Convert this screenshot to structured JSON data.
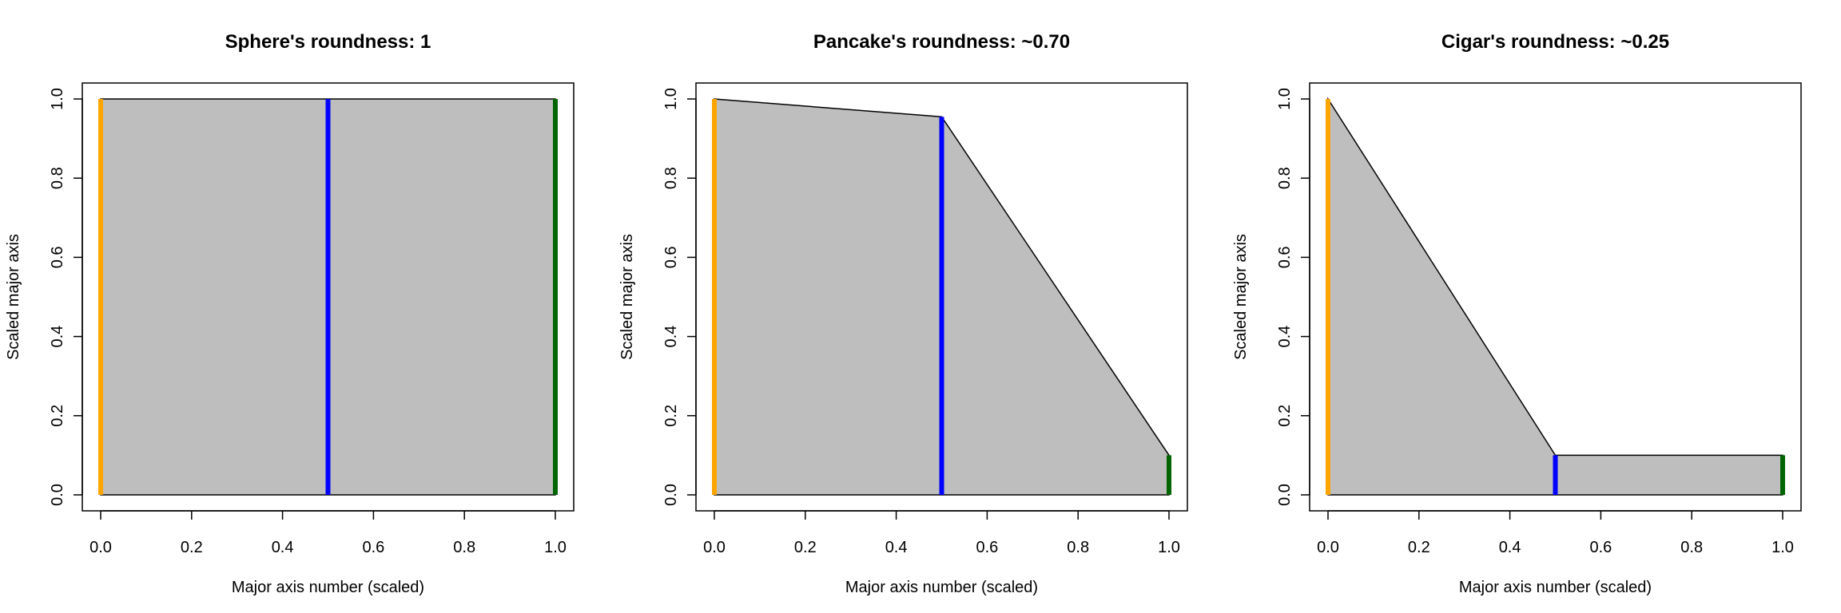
{
  "colors": {
    "fill": "#bebebe",
    "axis_first": "#ffa500",
    "axis_middle": "#0000ff",
    "axis_last": "#006400"
  },
  "chart_data": [
    {
      "type": "area",
      "title": "Sphere's roundness: 1",
      "xlabel": "Major axis number (scaled)",
      "ylabel": "Scaled major axis",
      "xlim": [
        0,
        1
      ],
      "ylim": [
        0,
        1
      ],
      "xticks": [
        "0.0",
        "0.2",
        "0.4",
        "0.6",
        "0.8",
        "1.0"
      ],
      "yticks": [
        "0.0",
        "0.2",
        "0.4",
        "0.6",
        "0.8",
        "1.0"
      ],
      "x": [
        0,
        0.5,
        1
      ],
      "y": [
        1,
        1,
        1
      ]
    },
    {
      "type": "area",
      "title": "Pancake's roundness: ~0.70",
      "xlabel": "Major axis number (scaled)",
      "ylabel": "Scaled major axis",
      "xlim": [
        0,
        1
      ],
      "ylim": [
        0,
        1
      ],
      "xticks": [
        "0.0",
        "0.2",
        "0.4",
        "0.6",
        "0.8",
        "1.0"
      ],
      "yticks": [
        "0.0",
        "0.2",
        "0.4",
        "0.6",
        "0.8",
        "1.0"
      ],
      "x": [
        0,
        0.5,
        1
      ],
      "y": [
        1,
        0.955,
        0.1
      ]
    },
    {
      "type": "area",
      "title": "Cigar's roundness: ~0.25",
      "xlabel": "Major axis number (scaled)",
      "ylabel": "Scaled major axis",
      "xlim": [
        0,
        1
      ],
      "ylim": [
        0,
        1
      ],
      "xticks": [
        "0.0",
        "0.2",
        "0.4",
        "0.6",
        "0.8",
        "1.0"
      ],
      "yticks": [
        "0.0",
        "0.2",
        "0.4",
        "0.6",
        "0.8",
        "1.0"
      ],
      "x": [
        0,
        0.5,
        1
      ],
      "y": [
        1,
        0.1,
        0.1
      ]
    }
  ]
}
